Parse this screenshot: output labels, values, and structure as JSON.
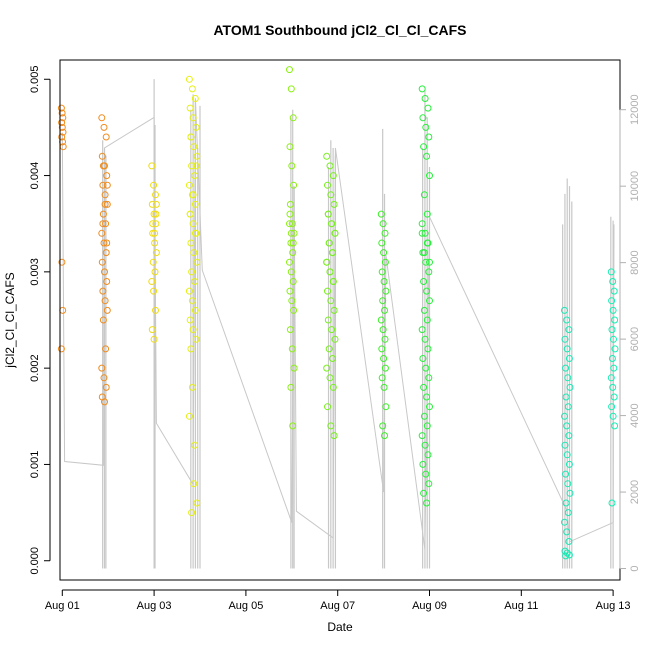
{
  "chart_data": {
    "type": "scatter",
    "title": "ATOM1 Southbound jCl2_Cl_Cl_CAFS",
    "xlabel": "Date",
    "ylabel": "jCl2_Cl_Cl_CAFS",
    "xlim": [
      -0.05,
      12.15
    ],
    "ylim": [
      -0.0002,
      0.0052
    ],
    "y2lim": [
      -300,
      13300
    ],
    "x_ticks": [
      {
        "v": 0,
        "label": "Aug 01"
      },
      {
        "v": 2,
        "label": "Aug 03"
      },
      {
        "v": 4,
        "label": "Aug 05"
      },
      {
        "v": 6,
        "label": "Aug 07"
      },
      {
        "v": 8,
        "label": "Aug 09"
      },
      {
        "v": 10,
        "label": "Aug 11"
      },
      {
        "v": 12,
        "label": "Aug 13"
      }
    ],
    "y_ticks": [
      {
        "v": 0,
        "label": "0.000"
      },
      {
        "v": 0.001,
        "label": "0.001"
      },
      {
        "v": 0.002,
        "label": "0.002"
      },
      {
        "v": 0.003,
        "label": "0.003"
      },
      {
        "v": 0.004,
        "label": "0.004"
      },
      {
        "v": 0.005,
        "label": "0.005"
      }
    ],
    "y2_ticks": [
      {
        "v": 0,
        "label": "0"
      },
      {
        "v": 2000,
        "label": "2000"
      },
      {
        "v": 4000,
        "label": "4000"
      },
      {
        "v": 6000,
        "label": "6000"
      },
      {
        "v": 8000,
        "label": "8000"
      },
      {
        "v": 10000,
        "label": "10000"
      },
      {
        "v": 12000,
        "label": "12000"
      }
    ],
    "points_color_gradient": [
      "#ff8c00",
      "#ffff00",
      "#7cfc00",
      "#00ff00",
      "#00fa9a",
      "#00ffff"
    ],
    "secondary_line_color": "#c8c8c8",
    "point_groups": [
      {
        "x": 0.0,
        "spread": 0.02,
        "color": "#f08c1e",
        "values": [
          0.0047,
          0.00465,
          0.0046,
          0.00455,
          0.0045,
          0.00445,
          0.0044,
          0.00435,
          0.0043,
          0.0031,
          0.0026,
          0.0022
        ]
      },
      {
        "x": 0.92,
        "spread": 0.06,
        "color": "#f08c1e",
        "values": [
          0.0046,
          0.0045,
          0.0044,
          0.0042,
          0.0041,
          0.004,
          0.0039,
          0.0038,
          0.0037,
          0.0036,
          0.0035,
          0.0034,
          0.0033,
          0.0032,
          0.0031,
          0.003,
          0.0029,
          0.0028,
          0.0027,
          0.0026,
          0.0025,
          0.0022,
          0.002,
          0.0019,
          0.0018,
          0.0017,
          0.00165,
          0.0033,
          0.0035,
          0.0037,
          0.0039,
          0.0041
        ]
      },
      {
        "x": 2.0,
        "spread": 0.05,
        "color": "#f0dc14",
        "values": [
          0.0041,
          0.0039,
          0.0038,
          0.0037,
          0.0036,
          0.0035,
          0.0034,
          0.0033,
          0.0032,
          0.0031,
          0.003,
          0.0029,
          0.0028,
          0.0026,
          0.0024,
          0.0023,
          0.0036,
          0.0035,
          0.0034,
          0.0037
        ]
      },
      {
        "x": 2.85,
        "spread": 0.08,
        "color": "#e6f014",
        "values": [
          0.005,
          0.0049,
          0.0048,
          0.0047,
          0.0046,
          0.0045,
          0.0044,
          0.0043,
          0.0042,
          0.0041,
          0.004,
          0.0039,
          0.0038,
          0.0037,
          0.0036,
          0.0035,
          0.0034,
          0.0033,
          0.0032,
          0.0031,
          0.003,
          0.0029,
          0.0028,
          0.0027,
          0.0026,
          0.0025,
          0.0024,
          0.0023,
          0.0022,
          0.0008,
          0.0006,
          0.0005,
          0.0012,
          0.0015,
          0.0018,
          0.0034,
          0.0036,
          0.0038,
          0.0041,
          0.0044
        ]
      },
      {
        "x": 5.0,
        "spread": 0.05,
        "color": "#8cf014",
        "values": [
          0.0051,
          0.0049,
          0.0046,
          0.0043,
          0.0041,
          0.0039,
          0.0037,
          0.0035,
          0.0034,
          0.0033,
          0.0032,
          0.0031,
          0.003,
          0.0029,
          0.0028,
          0.0027,
          0.0026,
          0.0024,
          0.0022,
          0.002,
          0.0018,
          0.0014,
          0.0035,
          0.0034,
          0.0033,
          0.0036
        ]
      },
      {
        "x": 5.85,
        "spread": 0.09,
        "color": "#78f01e",
        "values": [
          0.0042,
          0.0041,
          0.004,
          0.0039,
          0.0038,
          0.0037,
          0.0036,
          0.0035,
          0.0034,
          0.0033,
          0.0032,
          0.0031,
          0.003,
          0.0029,
          0.0028,
          0.0027,
          0.0026,
          0.0025,
          0.0024,
          0.0023,
          0.0022,
          0.0021,
          0.002,
          0.0019,
          0.0018,
          0.0016,
          0.0014,
          0.0013,
          0.0036,
          0.0035,
          0.0034,
          0.0033,
          0.0032,
          0.0031,
          0.003,
          0.0029
        ]
      },
      {
        "x": 7.0,
        "spread": 0.05,
        "color": "#3cf028",
        "values": [
          0.0036,
          0.0035,
          0.0034,
          0.0033,
          0.0032,
          0.0031,
          0.003,
          0.0029,
          0.0028,
          0.0027,
          0.0026,
          0.0025,
          0.0024,
          0.0023,
          0.0022,
          0.0021,
          0.002,
          0.0019,
          0.0018,
          0.0016,
          0.0014,
          0.0013
        ]
      },
      {
        "x": 7.92,
        "spread": 0.08,
        "color": "#28f03c",
        "values": [
          0.0049,
          0.0048,
          0.0047,
          0.0046,
          0.0045,
          0.0044,
          0.0043,
          0.0042,
          0.004,
          0.0038,
          0.0036,
          0.0035,
          0.0034,
          0.0033,
          0.0032,
          0.0031,
          0.003,
          0.0029,
          0.0028,
          0.0027,
          0.0026,
          0.0025,
          0.0024,
          0.0023,
          0.0022,
          0.0021,
          0.002,
          0.0019,
          0.0018,
          0.0017,
          0.0016,
          0.0015,
          0.0014,
          0.0013,
          0.0012,
          0.0011,
          0.001,
          0.0009,
          0.0008,
          0.0007,
          0.0006,
          0.0031,
          0.0032,
          0.0033,
          0.0034
        ]
      },
      {
        "x": 11.0,
        "spread": 0.06,
        "color": "#1ee6b4",
        "values": [
          0.0026,
          0.0025,
          0.0024,
          0.0023,
          0.0022,
          0.0021,
          0.002,
          0.0019,
          0.0018,
          0.0017,
          0.0016,
          0.0015,
          0.0014,
          0.0013,
          0.0012,
          0.0011,
          0.001,
          0.0009,
          0.0008,
          0.0007,
          0.0006,
          0.0005,
          0.0004,
          0.0003,
          0.0002,
          0.0001,
          8e-05,
          6e-05,
          5e-05
        ]
      },
      {
        "x": 12.0,
        "spread": 0.04,
        "color": "#14f0b4",
        "values": [
          0.003,
          0.0029,
          0.0028,
          0.0027,
          0.0026,
          0.0025,
          0.0024,
          0.0023,
          0.0022,
          0.0021,
          0.002,
          0.0019,
          0.0018,
          0.0017,
          0.0016,
          0.0015,
          0.0014,
          0.0006
        ]
      }
    ],
    "secondary_spikes": [
      {
        "x": 0.88,
        "top": 11200
      },
      {
        "x": 0.92,
        "top": 11000
      },
      {
        "x": 0.95,
        "top": 10800
      },
      {
        "x": 2.0,
        "top": 12800
      },
      {
        "x": 2.02,
        "top": 11600
      },
      {
        "x": 2.8,
        "top": 12000
      },
      {
        "x": 2.85,
        "top": 12400
      },
      {
        "x": 2.9,
        "top": 12200
      },
      {
        "x": 2.95,
        "top": 11000
      },
      {
        "x": 3.0,
        "top": 12100
      },
      {
        "x": 4.98,
        "top": 11800
      },
      {
        "x": 5.02,
        "top": 12000
      },
      {
        "x": 5.05,
        "top": 10000
      },
      {
        "x": 5.8,
        "top": 10500
      },
      {
        "x": 5.85,
        "top": 11200
      },
      {
        "x": 5.9,
        "top": 11000
      },
      {
        "x": 5.95,
        "top": 10800
      },
      {
        "x": 6.98,
        "top": 11500
      },
      {
        "x": 7.02,
        "top": 9800
      },
      {
        "x": 7.85,
        "top": 11000
      },
      {
        "x": 7.9,
        "top": 12500
      },
      {
        "x": 7.95,
        "top": 11800
      },
      {
        "x": 8.0,
        "top": 10500
      },
      {
        "x": 10.9,
        "top": 9000
      },
      {
        "x": 10.95,
        "top": 9800
      },
      {
        "x": 11.0,
        "top": 10200
      },
      {
        "x": 11.05,
        "top": 10000
      },
      {
        "x": 11.1,
        "top": 9600
      },
      {
        "x": 11.95,
        "top": 9200
      },
      {
        "x": 12.0,
        "top": 9100
      }
    ],
    "secondary_path": [
      [
        0.0,
        11400
      ],
      [
        0.05,
        2800
      ],
      [
        0.9,
        2700
      ],
      [
        0.92,
        11000
      ],
      [
        2.0,
        11800
      ],
      [
        2.05,
        3800
      ],
      [
        2.85,
        2200
      ],
      [
        2.9,
        12300
      ],
      [
        3.05,
        7800
      ],
      [
        5.0,
        1200
      ],
      [
        5.05,
        10000
      ],
      [
        5.1,
        1500
      ],
      [
        5.9,
        800
      ],
      [
        5.95,
        11000
      ],
      [
        7.0,
        2000
      ],
      [
        7.05,
        8200
      ],
      [
        7.9,
        500
      ],
      [
        8.0,
        9200
      ],
      [
        11.0,
        1500
      ],
      [
        11.05,
        700
      ],
      [
        12.0,
        1200
      ],
      [
        12.02,
        9000
      ]
    ]
  }
}
